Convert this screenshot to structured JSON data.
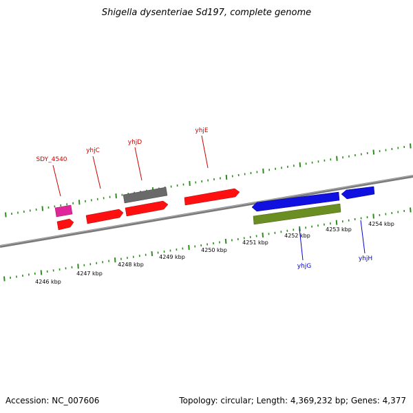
{
  "title": "Shigella dysenteriae Sd197, complete genome",
  "accession": "Accession: NC_007606",
  "summary": "Topology: circular; Length: 4,369,232 bp; Genes: 4,377",
  "colors": {
    "backbone": "#808080",
    "ticks": "#2e8b1e",
    "forward_label": "#cc0000",
    "reverse_label": "#0000cc",
    "red": "#ff1010",
    "magenta": "#e0259a",
    "gray": "#6a6a6a",
    "blue": "#1010e0",
    "olive": "#6b8e23"
  },
  "kbp_labels": [
    "4246 kbp",
    "4247 kbp",
    "4248 kbp",
    "4249 kbp",
    "4250 kbp",
    "4251 kbp",
    "4252 kbp",
    "4253 kbp",
    "4254 kbp"
  ],
  "gene_labels": {
    "sdy4540": "SDY_4540",
    "yhjC": "yhjC",
    "yhjD": "yhjD",
    "yhjE": "yhjE",
    "yhjG": "yhjG",
    "yhjH": "yhjH"
  }
}
